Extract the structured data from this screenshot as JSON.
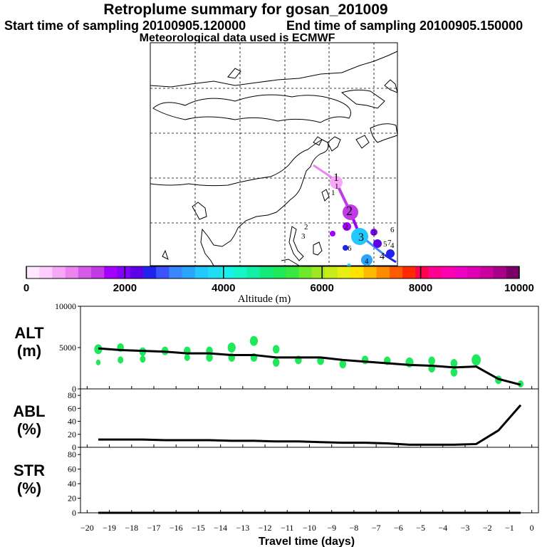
{
  "header": {
    "title": "Retroplume summary for gosan_201009",
    "start_label": "Start time of sampling 20100905.120000",
    "end_label": "End time of sampling 20100905.150000",
    "met_label": "Meteorological data used is ECMWF"
  },
  "map": {
    "plume_labels": [
      "1",
      "1",
      "1",
      "2",
      "2",
      "2",
      "3",
      "3",
      "3",
      "4",
      "4",
      "4",
      "5",
      "6",
      "6",
      "7"
    ]
  },
  "colorbar": {
    "ticks": [
      "0",
      "2000",
      "4000",
      "6000",
      "8000",
      "10000"
    ],
    "label": "Altitude (m)",
    "colors": [
      "#ffe8ff",
      "#ffccff",
      "#f7a7f7",
      "#ea85ef",
      "#d55ae8",
      "#c23ae5",
      "#a400ff",
      "#8400ff",
      "#5e00e6",
      "#2222ee",
      "#3b52ff",
      "#3a86ff",
      "#29a4ff",
      "#25c7ff",
      "#22dcf5",
      "#18f0e8",
      "#14f5c8",
      "#12f0a8",
      "#14eb7a",
      "#1fe85a",
      "#38e83e",
      "#6ee82c",
      "#9ee81e",
      "#c8ec18",
      "#e8ee14",
      "#ffe200",
      "#ffba00",
      "#ff8c00",
      "#ff5a00",
      "#ff2a00",
      "#ff0050",
      "#ff0090",
      "#ff00b0",
      "#f000c0",
      "#e000b4",
      "#c8009e",
      "#a80088",
      "#7a0066"
    ]
  },
  "chart_data": [
    {
      "type": "line",
      "panel": "ALT",
      "ylabel": "ALT\n(m)",
      "ylim": [
        0,
        10000
      ],
      "yticks": [
        0,
        5000,
        10000
      ],
      "x": [
        -0.5,
        -1.5,
        -2.5,
        -3.5,
        -4.5,
        -5.5,
        -6.5,
        -7.5,
        -8.5,
        -9.5,
        -10.5,
        -11.5,
        -12.5,
        -13.5,
        -14.5,
        -15.5,
        -16.5,
        -17.5,
        -18.5,
        -19.5
      ],
      "series": [
        {
          "name": "mean altitude",
          "values": [
            500,
            1200,
            2700,
            2600,
            2800,
            2900,
            3100,
            3300,
            3500,
            3800,
            3800,
            3800,
            4100,
            4100,
            4300,
            4300,
            4500,
            4600,
            4700,
            4900
          ]
        }
      ],
      "clusters": [
        {
          "x": -0.5,
          "y": 600,
          "size": 5
        },
        {
          "x": -1.5,
          "y": 1100,
          "size": 6
        },
        {
          "x": -2.5,
          "y": 3500,
          "size": 8
        },
        {
          "x": -3.5,
          "y": 2000,
          "size": 6
        },
        {
          "x": -3.5,
          "y": 3100,
          "size": 6
        },
        {
          "x": -4.5,
          "y": 2500,
          "size": 6
        },
        {
          "x": -4.5,
          "y": 3400,
          "size": 6
        },
        {
          "x": -5.5,
          "y": 3200,
          "size": 7
        },
        {
          "x": -6.5,
          "y": 3400,
          "size": 6
        },
        {
          "x": -7.5,
          "y": 3500,
          "size": 6
        },
        {
          "x": -8.5,
          "y": 3000,
          "size": 6
        },
        {
          "x": -9.5,
          "y": 3400,
          "size": 6
        },
        {
          "x": -10.5,
          "y": 3500,
          "size": 6
        },
        {
          "x": -11.5,
          "y": 4800,
          "size": 6
        },
        {
          "x": -11.5,
          "y": 3200,
          "size": 6
        },
        {
          "x": -12.5,
          "y": 5800,
          "size": 7
        },
        {
          "x": -12.5,
          "y": 3800,
          "size": 6
        },
        {
          "x": -13.5,
          "y": 5000,
          "size": 7
        },
        {
          "x": -13.5,
          "y": 3800,
          "size": 6
        },
        {
          "x": -14.5,
          "y": 4600,
          "size": 6
        },
        {
          "x": -14.5,
          "y": 3800,
          "size": 6
        },
        {
          "x": -15.5,
          "y": 4600,
          "size": 6
        },
        {
          "x": -15.5,
          "y": 3800,
          "size": 5
        },
        {
          "x": -16.5,
          "y": 4600,
          "size": 6
        },
        {
          "x": -17.5,
          "y": 4500,
          "size": 6
        },
        {
          "x": -17.5,
          "y": 3600,
          "size": 5
        },
        {
          "x": -18.5,
          "y": 5000,
          "size": 6
        },
        {
          "x": -18.5,
          "y": 3500,
          "size": 5
        },
        {
          "x": -19.5,
          "y": 4800,
          "size": 7
        },
        {
          "x": -19.5,
          "y": 3200,
          "size": 4
        }
      ]
    },
    {
      "type": "line",
      "panel": "ABL",
      "ylabel": "ABL\n(%)",
      "ylim": [
        0,
        90
      ],
      "yticks": [
        0,
        20,
        40,
        60,
        80
      ],
      "x": [
        -0.5,
        -1.5,
        -2.5,
        -3.5,
        -4.5,
        -5.5,
        -6.5,
        -7.5,
        -8.5,
        -9.5,
        -10.5,
        -11.5,
        -12.5,
        -13.5,
        -14.5,
        -15.5,
        -16.5,
        -17.5,
        -18.5,
        -19.5
      ],
      "series": [
        {
          "name": "ABL fraction",
          "values": [
            65,
            26,
            5,
            4,
            4,
            4,
            6,
            7,
            7,
            8,
            9,
            9,
            10,
            10,
            11,
            11,
            11,
            12,
            12,
            12
          ]
        }
      ]
    },
    {
      "type": "line",
      "panel": "STR",
      "ylabel": "STR\n(%)",
      "ylim": [
        0,
        90
      ],
      "yticks": [
        0,
        20,
        40,
        60,
        80
      ],
      "x": [
        -0.5,
        -1.5,
        -2.5,
        -3.5,
        -4.5,
        -5.5,
        -6.5,
        -7.5,
        -8.5,
        -9.5,
        -10.5,
        -11.5,
        -12.5,
        -13.5,
        -14.5,
        -15.5,
        -16.5,
        -17.5,
        -18.5,
        -19.5
      ],
      "series": [
        {
          "name": "stratosphere fraction",
          "values": [
            0,
            0,
            0,
            0,
            0,
            0,
            0,
            0,
            0,
            0,
            0,
            0,
            0,
            0,
            0,
            0,
            0,
            0,
            0,
            0
          ]
        }
      ]
    }
  ],
  "xaxis": {
    "label": "Travel time (days)",
    "ticks": [
      "−20",
      "−19",
      "−18",
      "−17",
      "−16",
      "−15",
      "−14",
      "−13",
      "−12",
      "−11",
      "−10",
      "−9",
      "−8",
      "−7",
      "−6",
      "−5",
      "−4",
      "−3",
      "−2",
      "−1",
      "0"
    ]
  }
}
